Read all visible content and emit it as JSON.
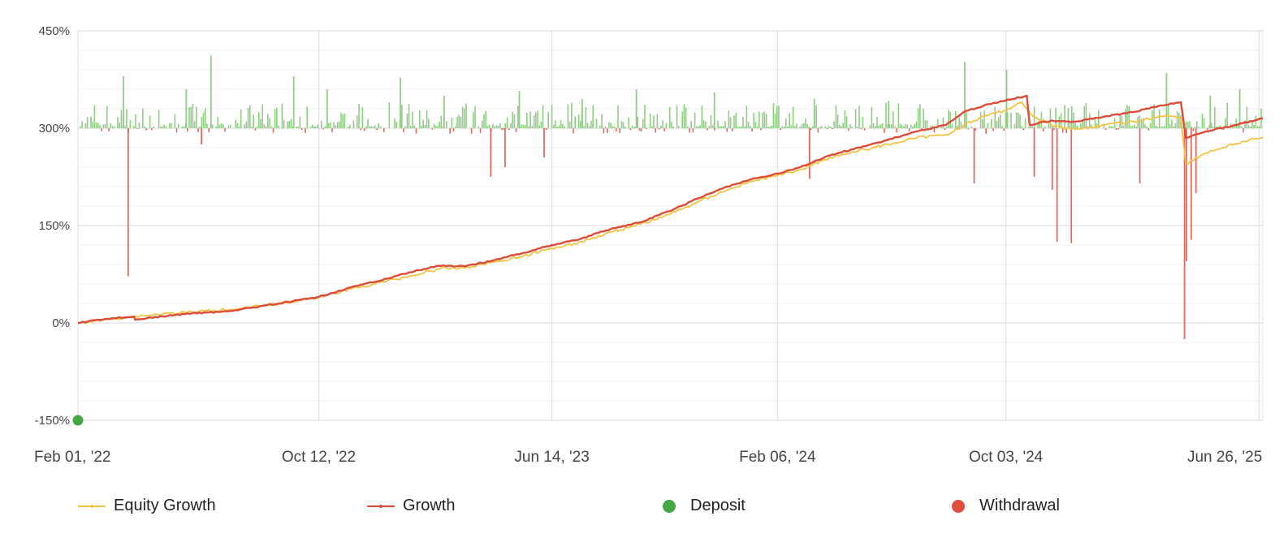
{
  "chart_data": {
    "type": "line",
    "y_axis": {
      "ticks": [
        "450%",
        "300%",
        "150%",
        "0%",
        "-150%"
      ],
      "tick_values": [
        450,
        300,
        150,
        0,
        -150
      ],
      "range": [
        -150,
        450
      ]
    },
    "x_axis": {
      "ticks": [
        "Feb 01, '22",
        "Oct 12, '22",
        "Jun 14, '23",
        "Feb 06, '24",
        "Oct 03, '24",
        "Jun 26, '25"
      ],
      "range": [
        "Feb 01, '22",
        "Jun 30, '25"
      ]
    },
    "grid": true,
    "legend_position": "bottom",
    "colors": {
      "equity": "#f5c242",
      "growth": "#dd4b39",
      "deposit": "#43a843",
      "withdrawal": "#e04d3c",
      "daily_positive": "#8fce83",
      "daily_negative": "#e36b5e"
    },
    "series": [
      {
        "name": "Equity Growth",
        "color": "#f5c242",
        "points": [
          [
            "Feb 01, '22",
            0
          ],
          [
            "Mar 01, '22",
            5
          ],
          [
            "Apr 01, '22",
            10
          ],
          [
            "May 01, '22",
            14
          ],
          [
            "Jun 01, '22",
            17
          ],
          [
            "Jul 01, '22",
            20
          ],
          [
            "Aug 01, '22",
            24
          ],
          [
            "Sep 01, '22",
            30
          ],
          [
            "Oct 12, '22",
            40
          ],
          [
            "Nov 15, '22",
            52
          ],
          [
            "Dec 15, '22",
            62
          ],
          [
            "Jan 15, '23",
            72
          ],
          [
            "Feb 15, '23",
            83
          ],
          [
            "Mar 15, '23",
            85
          ],
          [
            "Apr 15, '23",
            94
          ],
          [
            "May 15, '23",
            103
          ],
          [
            "Jun 14, '23",
            115
          ],
          [
            "Jul 15, '23",
            125
          ],
          [
            "Aug 15, '23",
            140
          ],
          [
            "Sep 15, '23",
            152
          ],
          [
            "Oct 15, '23",
            167
          ],
          [
            "Nov 15, '23",
            187
          ],
          [
            "Dec 15, '23",
            205
          ],
          [
            "Jan 15, '24",
            220
          ],
          [
            "Feb 06, '24",
            227
          ],
          [
            "Mar 01, '24",
            236
          ],
          [
            "Apr 01, '24",
            255
          ],
          [
            "May 01, '24",
            265
          ],
          [
            "Jun 01, '24",
            275
          ],
          [
            "Jul 01, '24",
            285
          ],
          [
            "Aug 01, '24",
            290
          ],
          [
            "Aug 20, '24",
            305
          ],
          [
            "Sep 10, '24",
            318
          ],
          [
            "Oct 03, '24",
            328
          ],
          [
            "Oct 20, '24",
            340
          ],
          [
            "Nov 01, '24",
            318
          ],
          [
            "Nov 20, '24",
            305
          ],
          [
            "Dec 15, '24",
            298
          ],
          [
            "Jan 15, '25",
            305
          ],
          [
            "Feb 15, '25",
            310
          ],
          [
            "Mar 20, '25",
            320
          ],
          [
            "Apr 05, '25",
            316
          ],
          [
            "Apr 10, '25",
            245
          ],
          [
            "May 01, '25",
            262
          ],
          [
            "Jun 01, '25",
            276
          ],
          [
            "Jun 30, '25",
            286
          ]
        ]
      },
      {
        "name": "Growth",
        "color": "#dd4b39",
        "points": [
          [
            "Feb 01, '22",
            0
          ],
          [
            "Mar 01, '22",
            6
          ],
          [
            "Apr 01, '22",
            10
          ],
          [
            "Apr 02, '22",
            5
          ],
          [
            "May 01, '22",
            10
          ],
          [
            "Jun 01, '22",
            15
          ],
          [
            "Jul 01, '22",
            17
          ],
          [
            "Aug 01, '22",
            23
          ],
          [
            "Sep 01, '22",
            30
          ],
          [
            "Oct 12, '22",
            40
          ],
          [
            "Nov 15, '22",
            55
          ],
          [
            "Dec 15, '22",
            65
          ],
          [
            "Jan 15, '23",
            78
          ],
          [
            "Feb 15, '23",
            88
          ],
          [
            "Mar 15, '23",
            87
          ],
          [
            "Apr 15, '23",
            97
          ],
          [
            "May 15, '23",
            108
          ],
          [
            "Jun 14, '23",
            120
          ],
          [
            "Jul 15, '23",
            130
          ],
          [
            "Aug 15, '23",
            145
          ],
          [
            "Sep 15, '23",
            155
          ],
          [
            "Oct 15, '23",
            172
          ],
          [
            "Nov 15, '23",
            192
          ],
          [
            "Dec 15, '23",
            210
          ],
          [
            "Jan 15, '24",
            223
          ],
          [
            "Feb 06, '24",
            230
          ],
          [
            "Mar 01, '24",
            240
          ],
          [
            "Apr 01, '24",
            258
          ],
          [
            "May 01, '24",
            270
          ],
          [
            "Jun 01, '24",
            282
          ],
          [
            "Jul 01, '24",
            295
          ],
          [
            "Aug 01, '24",
            305
          ],
          [
            "Aug 20, '24",
            325
          ],
          [
            "Sep 10, '24",
            335
          ],
          [
            "Oct 03, '24",
            343
          ],
          [
            "Oct 25, '24",
            350
          ],
          [
            "Oct 28, '24",
            305
          ],
          [
            "Nov 20, '24",
            312
          ],
          [
            "Dec 15, '24",
            310
          ],
          [
            "Jan 15, '25",
            318
          ],
          [
            "Feb 15, '25",
            325
          ],
          [
            "Mar 15, '25",
            335
          ],
          [
            "Apr 05, '25",
            340
          ],
          [
            "Apr 10, '25",
            285
          ],
          [
            "May 01, '25",
            295
          ],
          [
            "Jun 01, '25",
            305
          ],
          [
            "Jun 30, '25",
            315
          ]
        ]
      }
    ],
    "daily_bars_up": [
      [
        "Mar 20, '22",
        380
      ],
      [
        "May 25, '22",
        360
      ],
      [
        "Jun 20, '22",
        412
      ],
      [
        "Sep 15, '22",
        380
      ],
      [
        "Oct 20, '22",
        360
      ],
      [
        "Jan 05, '23",
        378
      ],
      [
        "Feb 20, '23",
        350
      ],
      [
        "May 10, '23",
        357
      ],
      [
        "Jul 15, '23",
        345
      ],
      [
        "Sep 10, '23",
        360
      ],
      [
        "Dec 01, '23",
        355
      ],
      [
        "Mar 15, '24",
        345
      ],
      [
        "Jun 01, '24",
        342
      ],
      [
        "Aug 20, '24",
        402
      ],
      [
        "Oct 03, '24",
        390
      ],
      [
        "Mar 20, '25",
        385
      ],
      [
        "May 05, '25",
        350
      ],
      [
        "Jun 05, '25",
        360
      ]
    ],
    "daily_bars_down": [
      [
        "Mar 25, '22",
        72
      ],
      [
        "Jun 10, '22",
        275
      ],
      [
        "Apr 10, '23",
        225
      ],
      [
        "Apr 25, '23",
        240
      ],
      [
        "Jun 05, '23",
        255
      ],
      [
        "Mar 10, '24",
        222
      ],
      [
        "Aug 30, '24",
        215
      ],
      [
        "Nov 01, '24",
        225
      ],
      [
        "Nov 20, '24",
        205
      ],
      [
        "Nov 25, '24",
        125
      ],
      [
        "Dec 10, '24",
        123
      ],
      [
        "Feb 20, '25",
        215
      ],
      [
        "Apr 08, '25",
        -25
      ],
      [
        "Apr 10, '25",
        95
      ],
      [
        "Apr 15, '25",
        128
      ],
      [
        "Apr 20, '25",
        200
      ]
    ],
    "deposits": [
      [
        "Feb 01, '22",
        -150
      ]
    ]
  },
  "legend": {
    "equity_label": "Equity Growth",
    "growth_label": "Growth",
    "deposit_label": "Deposit",
    "withdrawal_label": "Withdrawal"
  }
}
